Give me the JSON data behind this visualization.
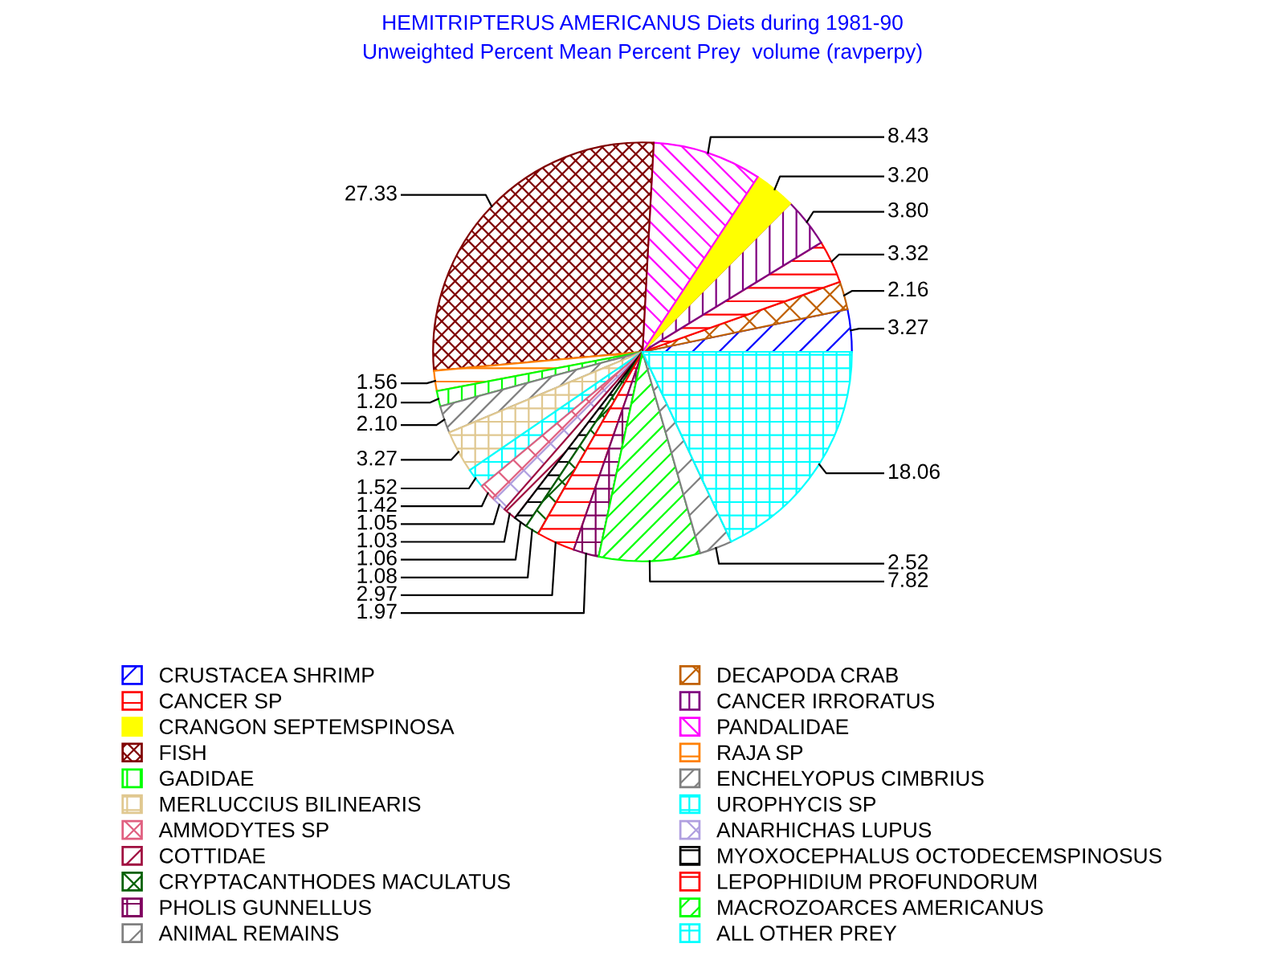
{
  "chart_data": {
    "type": "pie",
    "title": "HEMITRIPTERUS AMERICANUS Diets during 1981-90",
    "subtitle": "Unweighted Percent Mean Percent Prey  volume (ravperpy)",
    "categories": [
      "CRUSTACEA SHRIMP",
      "DECAPODA CRAB",
      "CANCER SP",
      "CANCER IRRORATUS",
      "CRANGON SEPTEMSPINOSA",
      "PANDALIDAE",
      "FISH",
      "RAJA SP",
      "GADIDAE",
      "ENCHELYOPUS CIMBRIUS",
      "MERLUCCIUS BILINEARIS",
      "UROPHYCIS SP",
      "AMMODYTES SP",
      "ANARHICHAS LUPUS",
      "COTTIDAE",
      "MYOXOCEPHALUS OCTODECEMSPINOSUS",
      "CRYPTACANTHODES MACULATUS",
      "LEPOPHIDIUM PROFUNDORUM",
      "PHOLIS GUNNELLUS",
      "MACROZOARCES AMERICANUS",
      "ANIMAL REMAINS",
      "ALL OTHER PREY"
    ],
    "values": [
      3.27,
      2.16,
      3.32,
      3.8,
      3.2,
      8.43,
      27.33,
      1.56,
      1.2,
      2.1,
      3.27,
      1.52,
      1.42,
      1.05,
      1.03,
      1.06,
      1.08,
      2.97,
      1.97,
      7.82,
      2.52,
      18.06
    ],
    "colors": [
      "#0000ff",
      "#c06000",
      "#ff0000",
      "#800080",
      "#ffff00",
      "#ff00ff",
      "#800000",
      "#ff8000",
      "#00ff00",
      "#808080",
      "#e0c890",
      "#00ffff",
      "#e06080",
      "#b0a0e0",
      "#a01040",
      "#000000",
      "#006000",
      "#ff0000",
      "#800060",
      "#00ff00",
      "#808080",
      "#00ffff"
    ],
    "value_labels": [
      "3.27",
      "2.16",
      "3.32",
      "3.80",
      "3.20",
      "8.43",
      "27.33",
      "1.56",
      "1.20",
      "2.10",
      "3.27",
      "1.52",
      "1.42",
      "1.05",
      "1.03",
      "1.06",
      "1.08",
      "2.97",
      "1.97",
      "7.82",
      "2.52",
      "18.06"
    ],
    "legend": "bottom"
  }
}
